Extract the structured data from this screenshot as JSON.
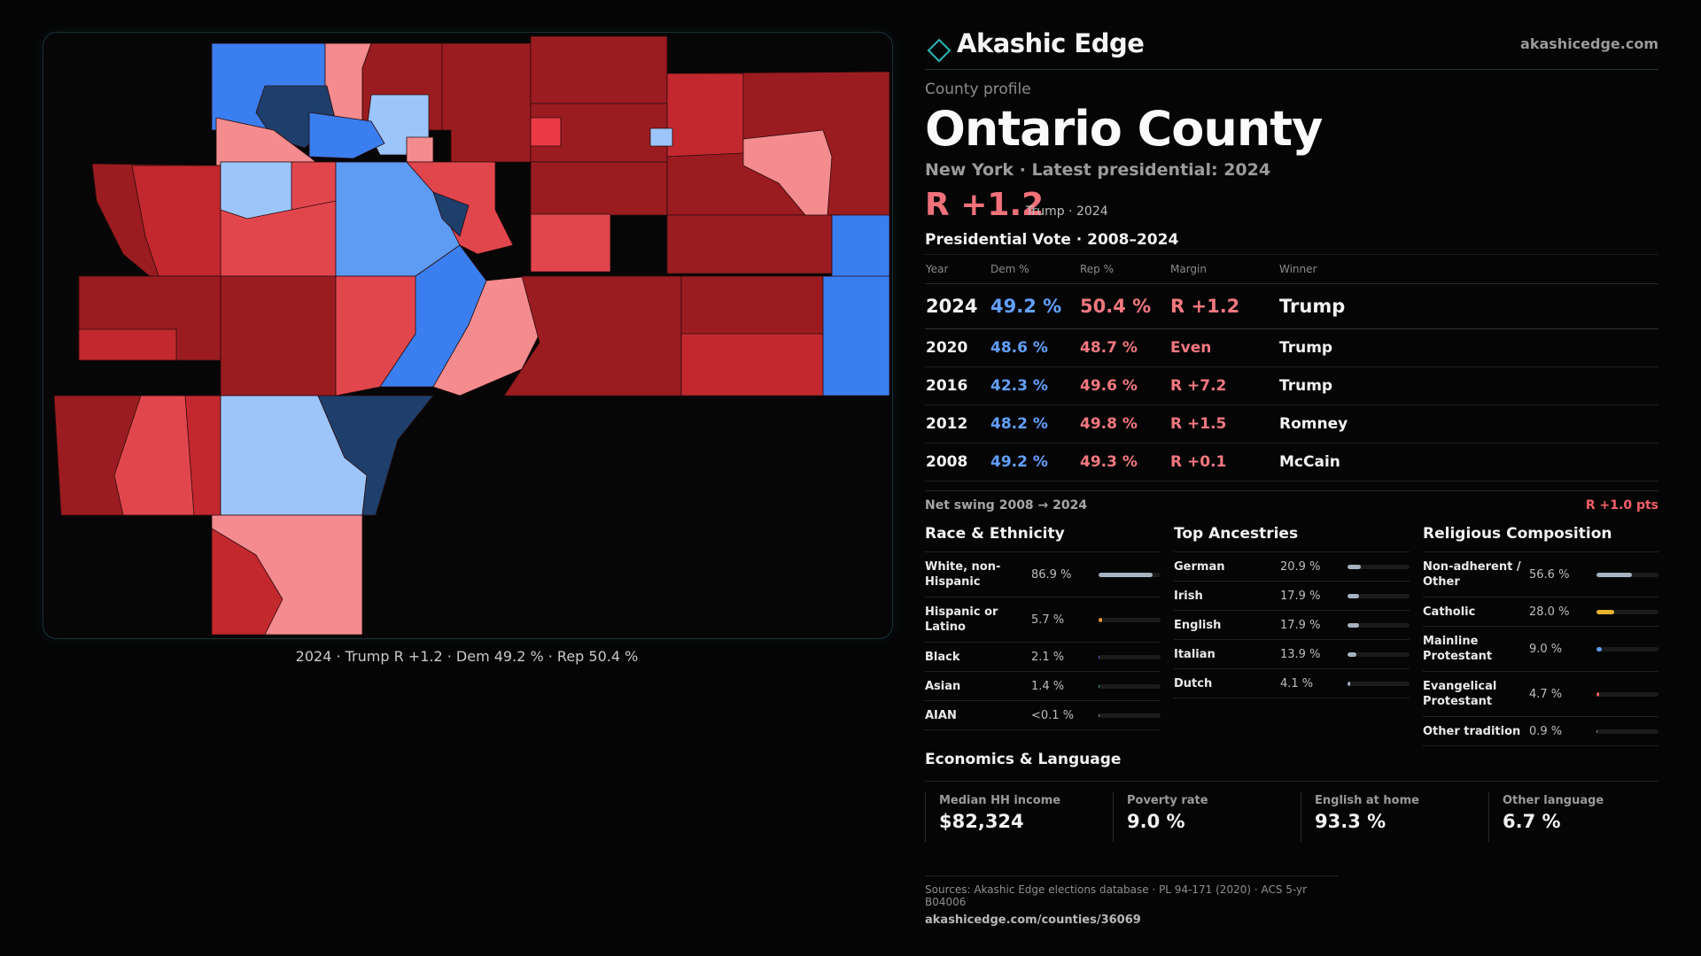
{
  "brand": {
    "name": "Akashic Edge",
    "url": "akashicedge.com"
  },
  "profile": {
    "eyebrow": "County profile",
    "county": "Ontario County",
    "state_line": "New York · Latest presidential: 2024",
    "margin_headline": "R +1.2",
    "margin_sub": "Trump · 2024"
  },
  "map": {
    "caption": "2024 · Trump R +1.2 · Dem 49.2 % · Rep 50.4 %",
    "colors": {
      "dark_red": "#9b1c20",
      "red": "#c2282e",
      "mid_red": "#e2464d",
      "light_red": "#f48c8f",
      "bright_red": "#ea3a44",
      "blue": "#3a7ef0",
      "mid_blue": "#5e9bf2",
      "light_blue": "#9cc5fb",
      "navy": "#1e3f6c"
    }
  },
  "presidential": {
    "title": "Presidential Vote · 2008–2024",
    "headers": {
      "year": "Year",
      "dem": "Dem %",
      "rep": "Rep %",
      "margin": "Margin",
      "winner": "Winner"
    },
    "rows": [
      {
        "year": "2024",
        "dem": "49.2 %",
        "rep": "50.4 %",
        "margin": "R +1.2",
        "winner": "Trump"
      },
      {
        "year": "2020",
        "dem": "48.6 %",
        "rep": "48.7 %",
        "margin": "Even",
        "winner": "Trump"
      },
      {
        "year": "2016",
        "dem": "42.3 %",
        "rep": "49.6 %",
        "margin": "R +7.2",
        "winner": "Trump"
      },
      {
        "year": "2012",
        "dem": "48.2 %",
        "rep": "49.8 %",
        "margin": "R +1.5",
        "winner": "Romney"
      },
      {
        "year": "2008",
        "dem": "49.2 %",
        "rep": "49.3 %",
        "margin": "R +0.1",
        "winner": "McCain"
      }
    ],
    "swing_label": "Net swing 2008 → 2024",
    "swing_value": "R +1.0 pts"
  },
  "race": {
    "title": "Race & Ethnicity",
    "items": [
      {
        "name": "White, non-Hispanic",
        "value": "86.9 %",
        "pct": 86.9,
        "color": "#a7b2c3"
      },
      {
        "name": "Hispanic or Latino",
        "value": "5.7 %",
        "pct": 5.7,
        "color": "#e7962f"
      },
      {
        "name": "Black",
        "value": "2.1 %",
        "pct": 2.1,
        "color": "#7a6ff0"
      },
      {
        "name": "Asian",
        "value": "1.4 %",
        "pct": 1.4,
        "color": "#4fb3a8"
      },
      {
        "name": "AIAN",
        "value": "<0.1 %",
        "pct": 0.1,
        "color": "#9a9a9a"
      }
    ]
  },
  "ancestry": {
    "title": "Top Ancestries",
    "items": [
      {
        "name": "German",
        "value": "20.9 %",
        "pct": 20.9,
        "color": "#a7b2c3"
      },
      {
        "name": "Irish",
        "value": "17.9 %",
        "pct": 17.9,
        "color": "#a7b2c3"
      },
      {
        "name": "English",
        "value": "17.9 %",
        "pct": 17.9,
        "color": "#a7b2c3"
      },
      {
        "name": "Italian",
        "value": "13.9 %",
        "pct": 13.9,
        "color": "#a7b2c3"
      },
      {
        "name": "Dutch",
        "value": "4.1 %",
        "pct": 4.1,
        "color": "#a7b2c3"
      }
    ]
  },
  "religion": {
    "title": "Religious Composition",
    "items": [
      {
        "name": "Non-adherent / Other",
        "value": "56.6 %",
        "pct": 56.6,
        "color": "#a7b2c3"
      },
      {
        "name": "Catholic",
        "value": "28.0 %",
        "pct": 28.0,
        "color": "#e9b52f"
      },
      {
        "name": "Mainline Protestant",
        "value": "9.0 %",
        "pct": 9.0,
        "color": "#5b9bf0"
      },
      {
        "name": "Evangelical Protestant",
        "value": "4.7 %",
        "pct": 4.7,
        "color": "#e85c5c"
      },
      {
        "name": "Other tradition",
        "value": "0.9 %",
        "pct": 0.9,
        "color": "#9a9a9a"
      }
    ]
  },
  "economics": {
    "title": "Economics & Language",
    "stats": [
      {
        "label": "Median HH income",
        "value": "$82,324"
      },
      {
        "label": "Poverty rate",
        "value": "9.0 %"
      },
      {
        "label": "English at home",
        "value": "93.3 %"
      },
      {
        "label": "Other language",
        "value": "6.7 %"
      }
    ]
  },
  "sources": {
    "line": "Sources: Akashic Edge elections database · PL 94-171 (2020) · ACS 5-yr B04006",
    "url": "akashicedge.com/counties/36069"
  }
}
